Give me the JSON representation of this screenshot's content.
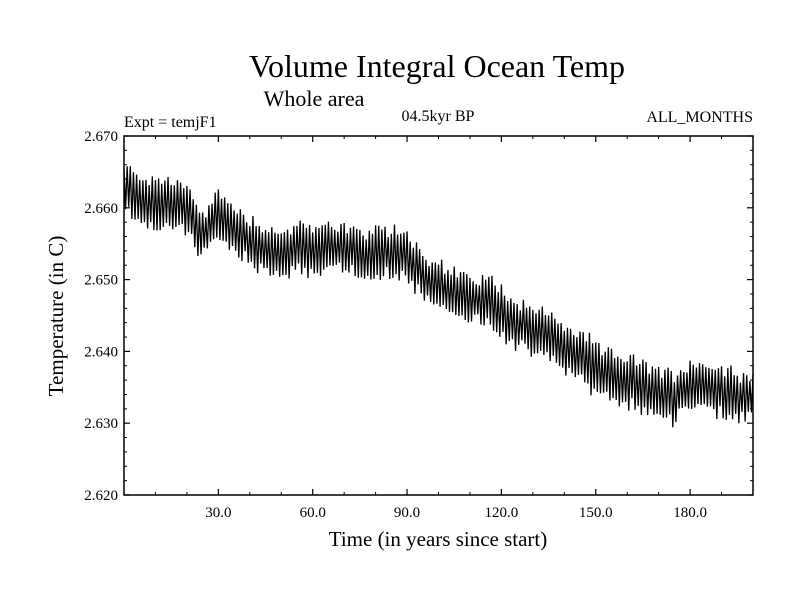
{
  "chart_data": {
    "type": "line",
    "title": "Volume Integral Ocean Temp",
    "subtitle": "Whole area",
    "left_label": "Expt = temjF1",
    "center_label": "04.5kyr BP",
    "right_label": "ALL_MONTHS",
    "xlabel": "Time (in years since start)",
    "ylabel": "Temperature (in C)",
    "xlim": [
      0,
      200
    ],
    "ylim": [
      2.62,
      2.67
    ],
    "xticks": [
      30.0,
      60.0,
      90.0,
      120.0,
      150.0,
      180.0
    ],
    "xtick_labels": [
      "30.0",
      "60.0",
      "90.0",
      "120.0",
      "150.0",
      "180.0"
    ],
    "yticks": [
      2.62,
      2.63,
      2.64,
      2.65,
      2.66,
      2.67
    ],
    "ytick_labels": [
      "2.620",
      "2.630",
      "2.640",
      "2.650",
      "2.660",
      "2.670"
    ],
    "series_color": "#000000",
    "seasonal_cycle": {
      "period_years": 1,
      "half_amplitude": 0.003
    },
    "series": [
      {
        "name": "Volume Integral Ocean Temp",
        "trend_x": [
          0,
          5,
          10,
          15,
          20,
          25,
          30,
          35,
          40,
          45,
          50,
          55,
          60,
          65,
          70,
          75,
          80,
          85,
          90,
          95,
          100,
          105,
          110,
          115,
          120,
          125,
          130,
          135,
          140,
          145,
          150,
          155,
          160,
          165,
          170,
          175,
          180,
          185,
          190,
          195,
          200
        ],
        "trend_y": [
          2.6625,
          2.6615,
          2.6605,
          2.661,
          2.6595,
          2.656,
          2.659,
          2.657,
          2.6555,
          2.654,
          2.6535,
          2.6545,
          2.6535,
          2.655,
          2.6545,
          2.653,
          2.6535,
          2.654,
          2.6535,
          2.6505,
          2.649,
          2.648,
          2.647,
          2.6475,
          2.6455,
          2.644,
          2.643,
          2.642,
          2.6405,
          2.6395,
          2.6375,
          2.6365,
          2.636,
          2.635,
          2.6345,
          2.6335,
          2.6355,
          2.635,
          2.6345,
          2.634,
          2.6335
        ]
      }
    ]
  }
}
